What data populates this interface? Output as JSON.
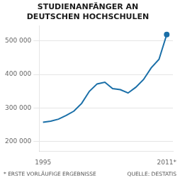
{
  "chart_data": {
    "type": "line",
    "title": [
      "STUDIENANFÄNGER AN",
      "DEUTSCHEN HOCHSCHULEN"
    ],
    "x": [
      1995,
      1996,
      1997,
      1998,
      1999,
      2000,
      2001,
      2002,
      2003,
      2004,
      2005,
      2006,
      2007,
      2008,
      2009,
      2010,
      2011
    ],
    "values": [
      258000,
      261000,
      267000,
      278000,
      291000,
      314000,
      350000,
      372000,
      377000,
      358000,
      355000,
      345000,
      362000,
      385000,
      420000,
      445000,
      519000
    ],
    "color": "#1a6fa8",
    "xlim": [
      1994.5,
      2011.8
    ],
    "xticks": [
      {
        "value": 1995,
        "label": "1995"
      },
      {
        "value": 2011,
        "label": "2011*"
      }
    ],
    "ylim": [
      172000,
      545000
    ],
    "yticks": [
      {
        "value": 200000,
        "label": "200 000"
      },
      {
        "value": 300000,
        "label": "300 000"
      },
      {
        "value": 400000,
        "label": "400 000"
      },
      {
        "value": 500000,
        "label": "500 000"
      }
    ],
    "grid": "y",
    "annotations": [
      "* ERSTE VORLÄUFIGE ERGEBNISSE",
      "QUELLE: DESTATIS"
    ]
  }
}
